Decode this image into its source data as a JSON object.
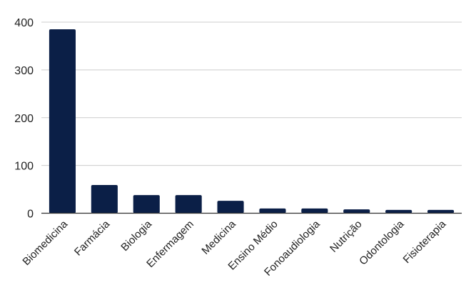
{
  "chart_data": {
    "type": "bar",
    "title": "",
    "xlabel": "",
    "ylabel": "",
    "categories": [
      "Biomedicina",
      "Farmácia",
      "Biologia",
      "Enfermagem",
      "Medicina",
      "Ensino Médio",
      "Fonoaudiologia",
      "Nutrição",
      "Odontologia",
      "Fisioterapia"
    ],
    "values": [
      385,
      59,
      38,
      38,
      26,
      10,
      10,
      8,
      7,
      7
    ],
    "ylim": [
      0,
      400
    ],
    "yticks": [
      0,
      100,
      200,
      300,
      400
    ],
    "grid": true,
    "legend": "none",
    "colors": {
      "bar": "#0b1f47",
      "grid": "#cccccc",
      "axis": "#333333"
    }
  }
}
